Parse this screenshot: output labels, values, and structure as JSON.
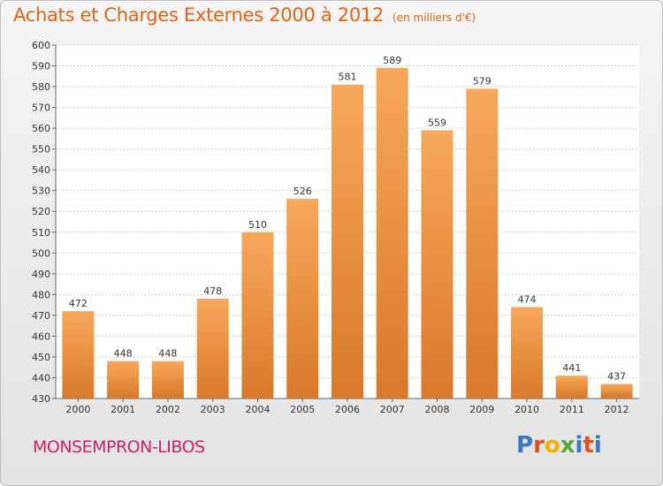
{
  "title": "Achats et Charges Externes 2000 à 2012",
  "unit": "(en milliers d'€)",
  "place": "MONSEMPRON-LIBOS",
  "brand": {
    "letters": [
      "P",
      "r",
      "o",
      "x",
      "i",
      "t",
      "i"
    ]
  },
  "colors": {
    "bar_light": "#f7a85a",
    "bar_dark": "#d8782a",
    "title": "#e06414",
    "place": "#cc2266"
  },
  "chart_data": {
    "type": "bar",
    "title": "Achats et Charges Externes 2000 à 2012",
    "categories": [
      "2000",
      "2001",
      "2002",
      "2003",
      "2004",
      "2005",
      "2006",
      "2007",
      "2008",
      "2009",
      "2010",
      "2011",
      "2012"
    ],
    "values": [
      472,
      448,
      448,
      478,
      510,
      526,
      581,
      589,
      559,
      579,
      474,
      441,
      437
    ],
    "ylim": [
      430,
      600
    ],
    "yticks": [
      430,
      440,
      450,
      460,
      470,
      480,
      490,
      500,
      510,
      520,
      530,
      540,
      550,
      560,
      570,
      580,
      590,
      600
    ],
    "grid": true,
    "xlabel": "",
    "ylabel": ""
  }
}
